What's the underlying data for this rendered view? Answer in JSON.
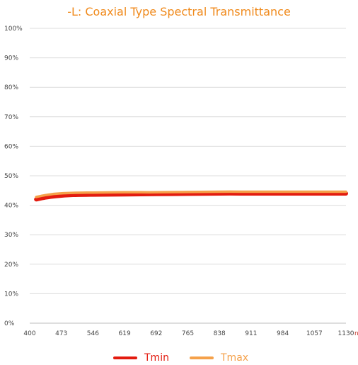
{
  "colors": {
    "title": "#f08a1c",
    "tmin": "#e31b0f",
    "tmax": "#f5a14a",
    "grid": "#dcdcdc",
    "text": "#444444",
    "unit": "#c0392b"
  },
  "chart_data": {
    "type": "line",
    "title": "-L:  Coaxial Type Spectral Transmittance",
    "xlabel": "",
    "ylabel": "",
    "x_unit": "nm",
    "x_ticks": [
      400,
      473,
      546,
      619,
      692,
      765,
      838,
      911,
      984,
      1057,
      1130
    ],
    "x_tick_labels": [
      "400",
      "473",
      "546",
      "619",
      "692",
      "765",
      "838",
      "911",
      "984",
      "1057",
      "1130"
    ],
    "y_tick_labels": [
      "0%",
      "10%",
      "20%",
      "30%",
      "40%",
      "50%",
      "60%",
      "70%",
      "80%",
      "90%",
      "100%"
    ],
    "xlim": [
      400,
      1130
    ],
    "ylim": [
      0,
      100
    ],
    "grid": true,
    "legend_position": "bottom",
    "x": [
      415,
      435,
      460,
      500,
      546,
      619,
      692,
      765,
      838,
      911,
      984,
      1057,
      1130
    ],
    "series": [
      {
        "name": "Tmin",
        "color": "#e31b0f",
        "values": [
          42.0,
          42.6,
          43.1,
          43.5,
          43.6,
          43.7,
          43.8,
          43.9,
          44.0,
          44.0,
          44.0,
          44.0,
          44.0
        ]
      },
      {
        "name": "Tmax",
        "color": "#f5a14a",
        "values": [
          42.8,
          43.4,
          43.9,
          44.2,
          44.3,
          44.4,
          44.4,
          44.5,
          44.6,
          44.6,
          44.6,
          44.6,
          44.6
        ]
      }
    ]
  }
}
